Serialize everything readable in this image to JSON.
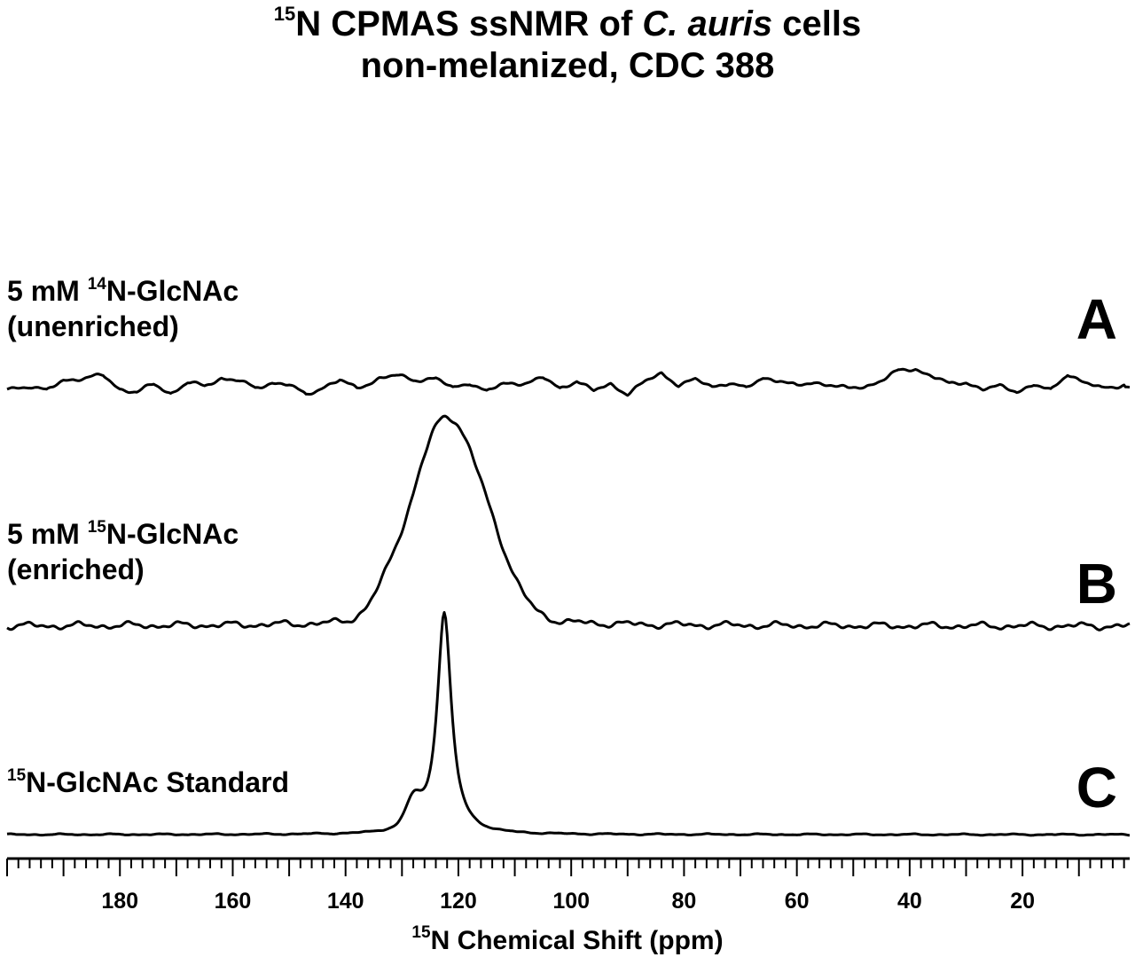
{
  "chart_data": {
    "type": "line",
    "title_line1_sup": "15",
    "title_line1_a": "N CPMAS ssNMR of ",
    "title_line1_italic": "C. auris",
    "title_line1_b": " cells",
    "title_line2": "non-melanized, CDC 388",
    "xlabel_sup": "15",
    "xlabel_text": "N Chemical Shift (ppm)",
    "xlim": [
      200,
      1
    ],
    "x_reversed": true,
    "tick_labels": [
      "180",
      "160",
      "140",
      "120",
      "100",
      "80",
      "60",
      "40",
      "20"
    ],
    "tick_values": [
      180,
      160,
      140,
      120,
      100,
      80,
      60,
      40,
      20
    ],
    "series": [
      {
        "letter": "A",
        "label_line1_prefix": "5 mM ",
        "label_line1_sup": "14",
        "label_line1_suffix": "N-GlcNAc",
        "label_line2": "(unenriched)",
        "note": "noise only, no peak",
        "noise_points": [
          [
            200,
            -0.05
          ],
          [
            196,
            0.02
          ],
          [
            193,
            -0.1
          ],
          [
            190,
            0.15
          ],
          [
            186,
            0.2
          ],
          [
            183,
            0.25
          ],
          [
            180,
            -0.05
          ],
          [
            177,
            -0.12
          ],
          [
            174,
            0.05
          ],
          [
            171,
            -0.15
          ],
          [
            168,
            0.1
          ],
          [
            165,
            0.0
          ],
          [
            162,
            0.2
          ],
          [
            159,
            0.15
          ],
          [
            156,
            -0.05
          ],
          [
            153,
            0.1
          ],
          [
            150,
            0.05
          ],
          [
            147,
            -0.2
          ],
          [
            144,
            0.0
          ],
          [
            141,
            0.15
          ],
          [
            138,
            -0.05
          ],
          [
            134,
            0.2
          ],
          [
            131,
            0.25
          ],
          [
            128,
            0.15
          ],
          [
            124,
            0.2
          ],
          [
            121,
            -0.05
          ],
          [
            118,
            0.1
          ],
          [
            115,
            -0.1
          ],
          [
            112,
            0.05
          ],
          [
            108,
            0.1
          ],
          [
            105,
            0.2
          ],
          [
            102,
            -0.05
          ],
          [
            99,
            0.15
          ],
          [
            96,
            -0.1
          ],
          [
            93,
            0.05
          ],
          [
            90,
            -0.15
          ],
          [
            87,
            0.1
          ],
          [
            84,
            0.3
          ],
          [
            81,
            0.05
          ],
          [
            78,
            0.15
          ],
          [
            75,
            0.0
          ],
          [
            72,
            0.1
          ],
          [
            69,
            -0.05
          ],
          [
            66,
            0.2
          ],
          [
            63,
            0.15
          ],
          [
            60,
            0.0
          ],
          [
            57,
            0.1
          ],
          [
            54,
            0.05
          ],
          [
            51,
            -0.05
          ],
          [
            48,
            0.0
          ],
          [
            45,
            0.15
          ],
          [
            42,
            0.35
          ],
          [
            39,
            0.4
          ],
          [
            36,
            0.25
          ],
          [
            33,
            0.05
          ],
          [
            30,
            0.1
          ],
          [
            27,
            -0.05
          ],
          [
            24,
            0.0
          ],
          [
            21,
            -0.1
          ],
          [
            18,
            0.05
          ],
          [
            15,
            -0.1
          ],
          [
            12,
            0.3
          ],
          [
            9,
            0.1
          ],
          [
            6,
            -0.05
          ],
          [
            2,
            0.05
          ]
        ]
      },
      {
        "letter": "B",
        "label_line1_prefix": "5 mM ",
        "label_line1_sup": "15",
        "label_line1_suffix": "N-GlcNAc",
        "label_line2": "(enriched)",
        "peak_center_ppm": 122.5,
        "peak_fwhm_ppm": 13,
        "peak_shoulder_ppm": 132
      },
      {
        "letter": "C",
        "label_sup": "15",
        "label_text": "N-GlcNAc Standard",
        "peak_center_ppm": 122.5,
        "peak_fwhm_ppm": 3,
        "peak_shoulder_ppm": 128
      }
    ]
  }
}
